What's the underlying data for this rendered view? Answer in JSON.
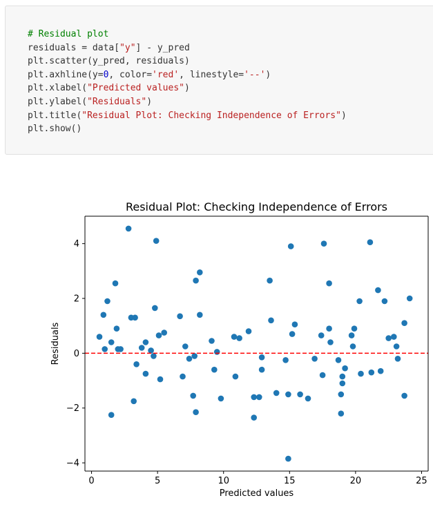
{
  "code_cell": {
    "lines": [
      [
        {
          "t": "# Residual plot",
          "c": "comment"
        }
      ],
      [
        {
          "t": "residuals = data[",
          "c": "plain"
        },
        {
          "t": "\"y\"",
          "c": "str"
        },
        {
          "t": "] - y_pred",
          "c": "plain"
        }
      ],
      [
        {
          "t": "plt.scatter(y_pred, residuals)",
          "c": "plain"
        }
      ],
      [
        {
          "t": "plt.axhline(y=",
          "c": "plain"
        },
        {
          "t": "0",
          "c": "num"
        },
        {
          "t": ", color=",
          "c": "plain"
        },
        {
          "t": "'red'",
          "c": "str"
        },
        {
          "t": ", linestyle=",
          "c": "plain"
        },
        {
          "t": "'--'",
          "c": "str"
        },
        {
          "t": ")",
          "c": "plain"
        }
      ],
      [
        {
          "t": "plt.xlabel(",
          "c": "plain"
        },
        {
          "t": "\"Predicted values\"",
          "c": "str"
        },
        {
          "t": ")",
          "c": "plain"
        }
      ],
      [
        {
          "t": "plt.ylabel(",
          "c": "plain"
        },
        {
          "t": "\"Residuals\"",
          "c": "str"
        },
        {
          "t": ")",
          "c": "plain"
        }
      ],
      [
        {
          "t": "plt.title(",
          "c": "plain"
        },
        {
          "t": "\"Residual Plot: Checking Independence of Errors\"",
          "c": "str"
        },
        {
          "t": ")",
          "c": "plain"
        }
      ],
      [
        {
          "t": "plt.show()",
          "c": "plain"
        }
      ]
    ]
  },
  "chart_data": {
    "type": "scatter",
    "title": "Residual Plot: Checking Independence of Errors",
    "xlabel": "Predicted values",
    "ylabel": "Residuals",
    "xlim": [
      -0.5,
      25.5
    ],
    "ylim": [
      -4.3,
      5.0
    ],
    "x_ticks": [
      0,
      5,
      10,
      15,
      20,
      25
    ],
    "y_ticks": [
      -4,
      -2,
      0,
      2,
      4
    ],
    "x_tick_labels": [
      "0",
      "5",
      "10",
      "15",
      "20",
      "25"
    ],
    "y_tick_labels": [
      "−4",
      "−2",
      "0",
      "2",
      "4"
    ],
    "grid": false,
    "point_color": "#1f77b4",
    "reference_line": {
      "y": 0,
      "color": "#ff0000",
      "linestyle": "dashed"
    },
    "points": [
      [
        0.6,
        0.6
      ],
      [
        0.9,
        1.4
      ],
      [
        1.0,
        0.15
      ],
      [
        1.2,
        1.9
      ],
      [
        1.5,
        -2.25
      ],
      [
        1.5,
        0.4
      ],
      [
        1.8,
        2.55
      ],
      [
        1.9,
        0.9
      ],
      [
        2.0,
        0.15
      ],
      [
        2.2,
        0.15
      ],
      [
        2.8,
        4.55
      ],
      [
        3.0,
        1.3
      ],
      [
        3.2,
        -1.75
      ],
      [
        3.3,
        1.3
      ],
      [
        3.4,
        -0.4
      ],
      [
        3.8,
        0.2
      ],
      [
        4.1,
        0.4
      ],
      [
        4.1,
        -0.75
      ],
      [
        4.5,
        0.1
      ],
      [
        4.7,
        -0.1
      ],
      [
        4.8,
        1.65
      ],
      [
        4.9,
        4.1
      ],
      [
        5.1,
        0.65
      ],
      [
        5.2,
        -0.95
      ],
      [
        5.5,
        0.75
      ],
      [
        6.7,
        1.35
      ],
      [
        6.9,
        -0.85
      ],
      [
        7.1,
        0.25
      ],
      [
        7.4,
        -0.2
      ],
      [
        7.7,
        -1.55
      ],
      [
        7.8,
        -0.1
      ],
      [
        7.9,
        2.65
      ],
      [
        7.9,
        -2.15
      ],
      [
        8.2,
        1.4
      ],
      [
        8.2,
        2.95
      ],
      [
        9.1,
        0.45
      ],
      [
        9.3,
        -0.6
      ],
      [
        9.5,
        0.05
      ],
      [
        9.8,
        -1.65
      ],
      [
        10.8,
        0.6
      ],
      [
        10.9,
        -0.85
      ],
      [
        11.2,
        0.55
      ],
      [
        11.9,
        0.8
      ],
      [
        12.3,
        -1.6
      ],
      [
        12.3,
        -2.35
      ],
      [
        12.7,
        -1.6
      ],
      [
        12.9,
        -0.15
      ],
      [
        12.9,
        -0.6
      ],
      [
        13.5,
        2.65
      ],
      [
        13.6,
        1.2
      ],
      [
        14.0,
        -1.45
      ],
      [
        14.7,
        -0.25
      ],
      [
        14.9,
        -1.5
      ],
      [
        15.1,
        3.9
      ],
      [
        15.2,
        0.7
      ],
      [
        15.4,
        1.05
      ],
      [
        15.8,
        -1.5
      ],
      [
        16.4,
        -1.65
      ],
      [
        16.9,
        -0.2
      ],
      [
        17.4,
        0.65
      ],
      [
        17.5,
        -0.8
      ],
      [
        17.6,
        4.0
      ],
      [
        18.0,
        2.55
      ],
      [
        18.0,
        0.9
      ],
      [
        18.1,
        0.4
      ],
      [
        18.7,
        -0.25
      ],
      [
        18.9,
        -2.2
      ],
      [
        18.9,
        -1.5
      ],
      [
        19.0,
        -1.1
      ],
      [
        19.0,
        -0.85
      ],
      [
        19.2,
        -0.55
      ],
      [
        19.7,
        0.65
      ],
      [
        19.8,
        0.25
      ],
      [
        19.9,
        0.9
      ],
      [
        20.3,
        1.9
      ],
      [
        20.4,
        -0.75
      ],
      [
        21.1,
        4.05
      ],
      [
        21.2,
        -0.7
      ],
      [
        21.7,
        2.3
      ],
      [
        21.9,
        -0.65
      ],
      [
        22.2,
        1.9
      ],
      [
        22.5,
        0.55
      ],
      [
        22.9,
        0.6
      ],
      [
        23.1,
        0.25
      ],
      [
        23.2,
        -0.2
      ],
      [
        23.7,
        1.1
      ],
      [
        23.7,
        -1.55
      ],
      [
        24.1,
        2.0
      ],
      [
        14.9,
        -3.85
      ]
    ]
  }
}
